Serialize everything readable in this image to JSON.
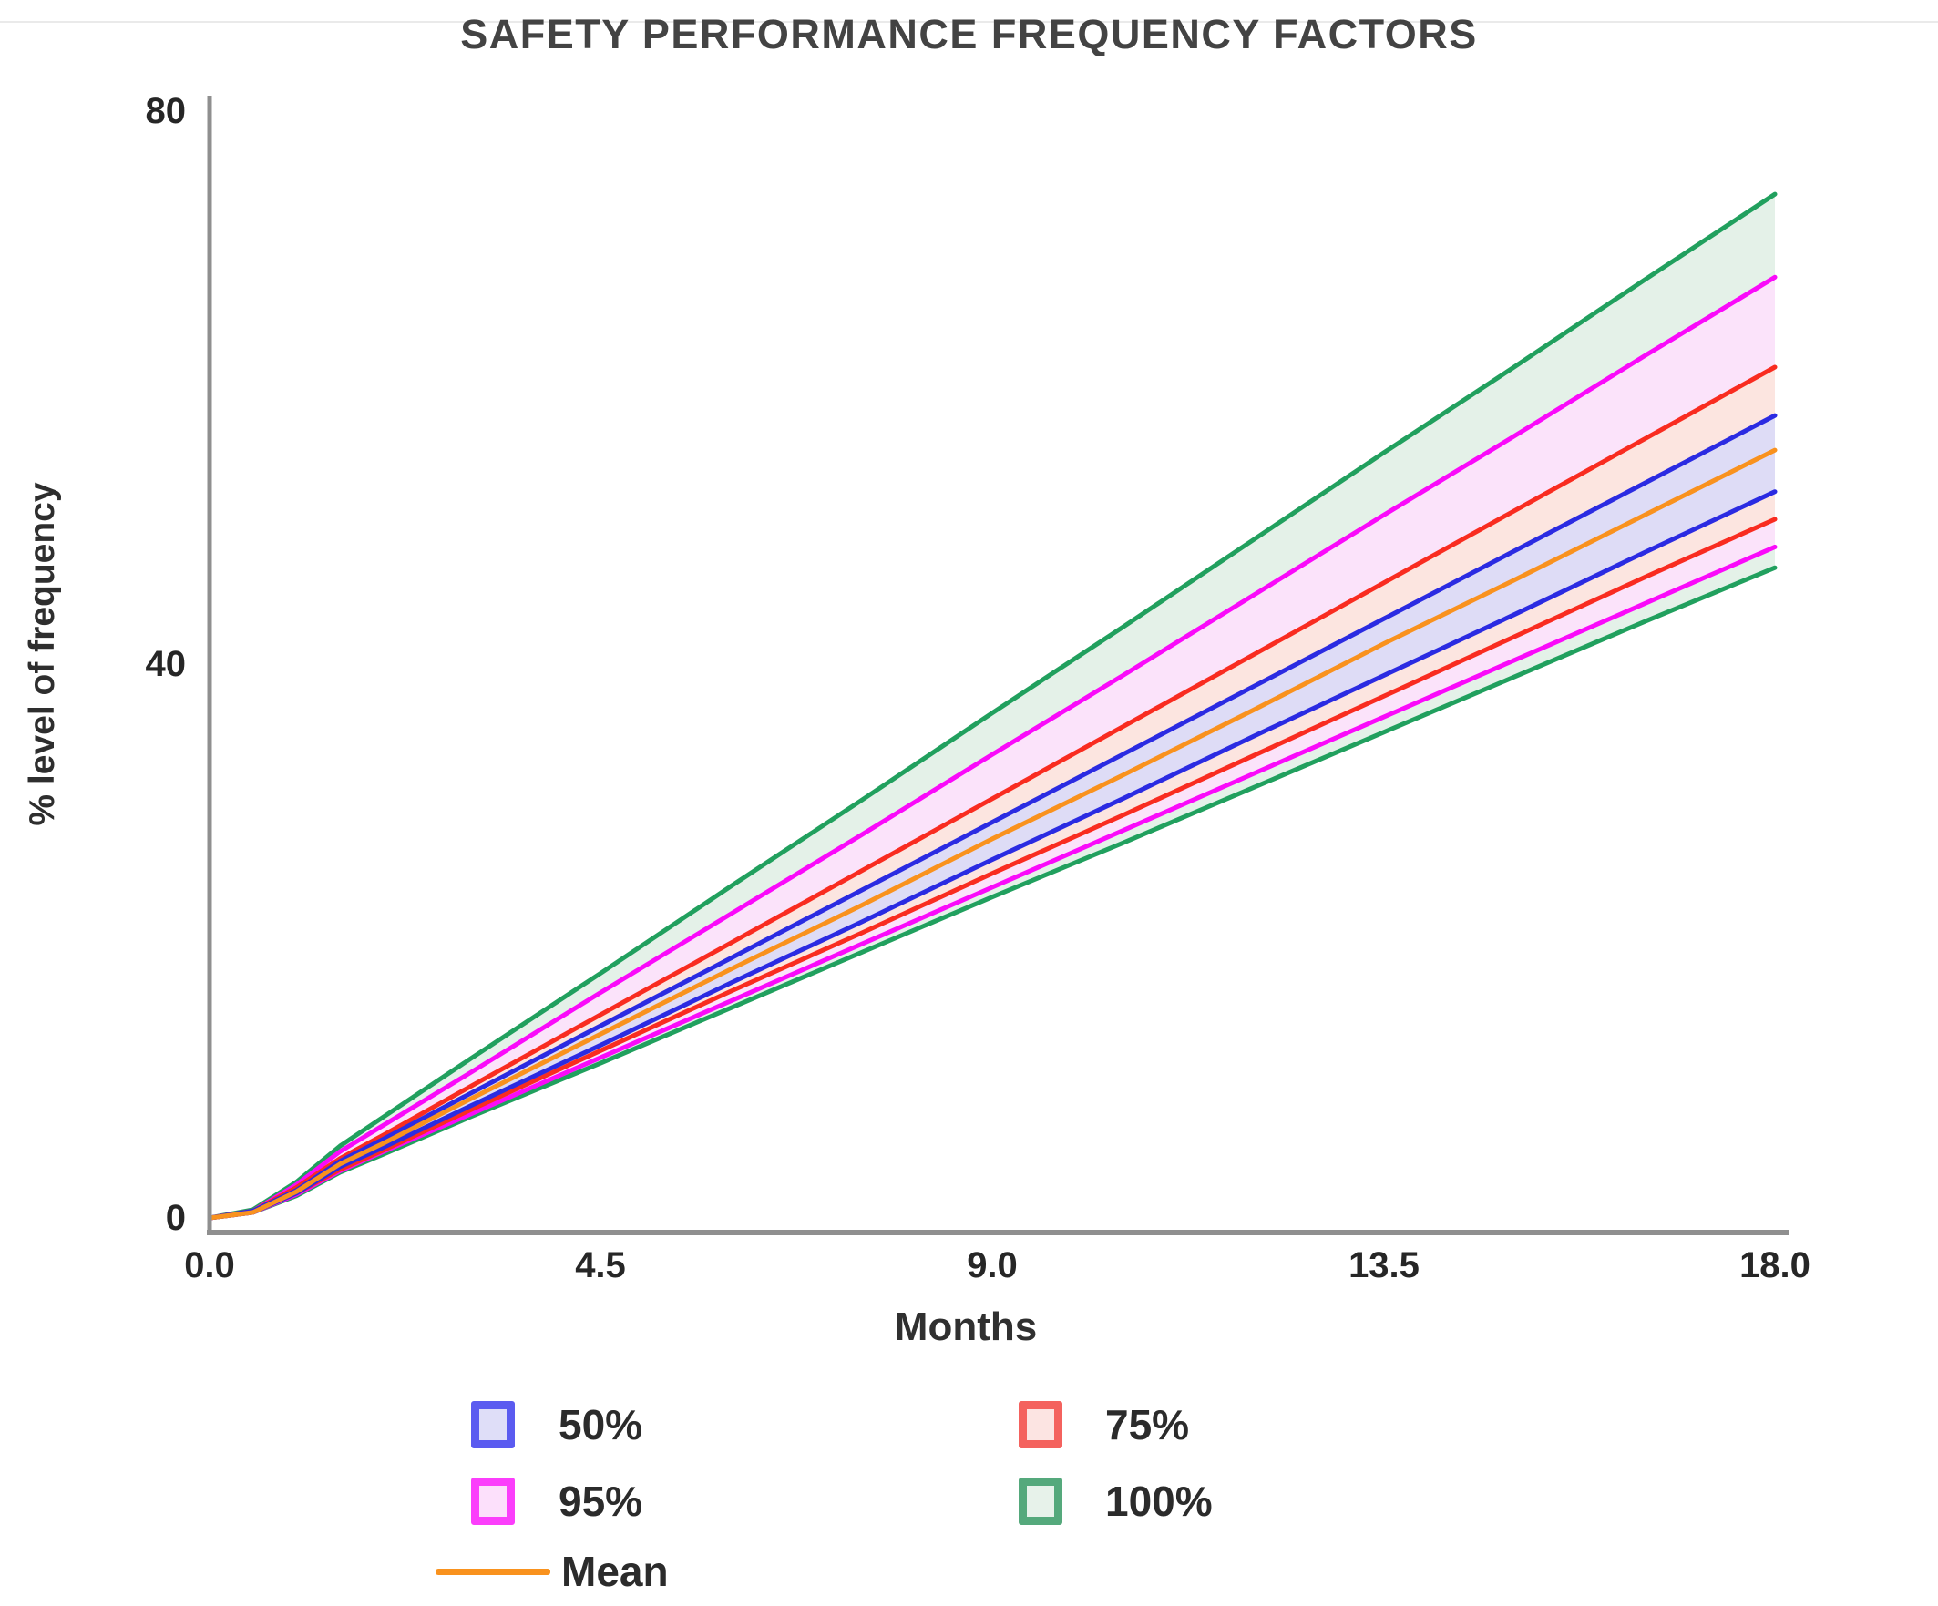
{
  "title": "SAFETY PERFORMANCE FREQUENCY FACTORS",
  "axes": {
    "y_label": "% level of frequency",
    "x_label": "Months",
    "y_ticks": [
      "80",
      "40",
      "0"
    ],
    "x_ticks": [
      "0.0",
      "4.5",
      "9.0",
      "13.5",
      "18.0"
    ]
  },
  "legend": {
    "items": [
      {
        "label": "50%",
        "border": "#5b5bf0",
        "fill": "#dfdef8"
      },
      {
        "label": "75%",
        "border": "#f4625e",
        "fill": "#fce4e2"
      },
      {
        "label": "95%",
        "border": "#fb3efb",
        "fill": "#fce0fb"
      },
      {
        "label": "100%",
        "border": "#55a97c",
        "fill": "#e7f2ea"
      },
      {
        "label": "Mean",
        "line_color": "#f9921e"
      }
    ]
  },
  "chart_data": {
    "type": "area",
    "title": "SAFETY PERFORMANCE FREQUENCY FACTORS",
    "xlabel": "Months",
    "ylabel": "% level of frequency",
    "xlim": [
      0,
      18
    ],
    "ylim": [
      0,
      80
    ],
    "x_tick_values": [
      0,
      4.5,
      9,
      13.5,
      18
    ],
    "y_tick_values": [
      0,
      40,
      80
    ],
    "grid": false,
    "legend_position": "bottom",
    "x": [
      0,
      0.5,
      1,
      1.5,
      2,
      3,
      4.5,
      6,
      7.5,
      9,
      10.5,
      12,
      13.5,
      15,
      16.5,
      18
    ],
    "bands": [
      {
        "name": "100%",
        "line_color": "#21a05e",
        "fill": "#e4f1e8",
        "upper": [
          0,
          0.6,
          2.6,
          5.2,
          7.3,
          11.5,
          17.7,
          24.0,
          30.2,
          36.5,
          42.7,
          49.0,
          55.3,
          61.5,
          67.8,
          74.0
        ],
        "lower": [
          0,
          0.4,
          1.6,
          3.3,
          4.6,
          7.3,
          11.2,
          15.2,
          19.2,
          23.2,
          27.1,
          31.1,
          35.1,
          39.1,
          43.1,
          47.0
        ]
      },
      {
        "name": "95%",
        "line_color": "#fa0afa",
        "fill": "#fbe3fa",
        "upper": [
          0,
          0.5,
          2.4,
          4.8,
          6.7,
          10.5,
          16.3,
          22.0,
          27.7,
          33.5,
          39.2,
          45.0,
          50.8,
          56.5,
          62.3,
          68.0
        ],
        "lower": [
          0,
          0.4,
          1.7,
          3.4,
          4.8,
          7.5,
          11.6,
          15.7,
          19.8,
          23.9,
          28.0,
          32.1,
          36.2,
          40.3,
          44.4,
          48.5
        ]
      },
      {
        "name": "75%",
        "line_color": "#f92c20",
        "fill": "#fce5e0",
        "upper": [
          0,
          0.5,
          2.2,
          4.3,
          6.0,
          9.5,
          14.7,
          19.9,
          25.1,
          30.3,
          35.5,
          40.7,
          45.9,
          51.1,
          56.3,
          61.5
        ],
        "lower": [
          0,
          0.4,
          1.8,
          3.5,
          4.9,
          7.8,
          12.1,
          16.4,
          20.6,
          24.9,
          29.1,
          33.4,
          37.7,
          42.0,
          46.3,
          50.5
        ]
      },
      {
        "name": "50%",
        "line_color": "#2b2be2",
        "fill": "#dedcf6",
        "upper": [
          0,
          0.5,
          2.0,
          4.1,
          5.7,
          9.0,
          13.9,
          18.8,
          23.7,
          28.6,
          33.5,
          38.4,
          43.3,
          48.2,
          53.1,
          58.0
        ],
        "lower": [
          0,
          0.4,
          1.8,
          3.7,
          5.1,
          8.1,
          12.5,
          17.0,
          21.4,
          25.9,
          30.3,
          34.8,
          39.2,
          43.6,
          48.1,
          52.5
        ]
      }
    ],
    "mean": {
      "name": "Mean",
      "line_color": "#f9921e",
      "values": [
        0,
        0.4,
        1.9,
        3.9,
        5.4,
        8.6,
        13.3,
        18.0,
        22.6,
        27.4,
        32.0,
        36.7,
        41.5,
        46.1,
        50.8,
        55.5
      ]
    }
  }
}
